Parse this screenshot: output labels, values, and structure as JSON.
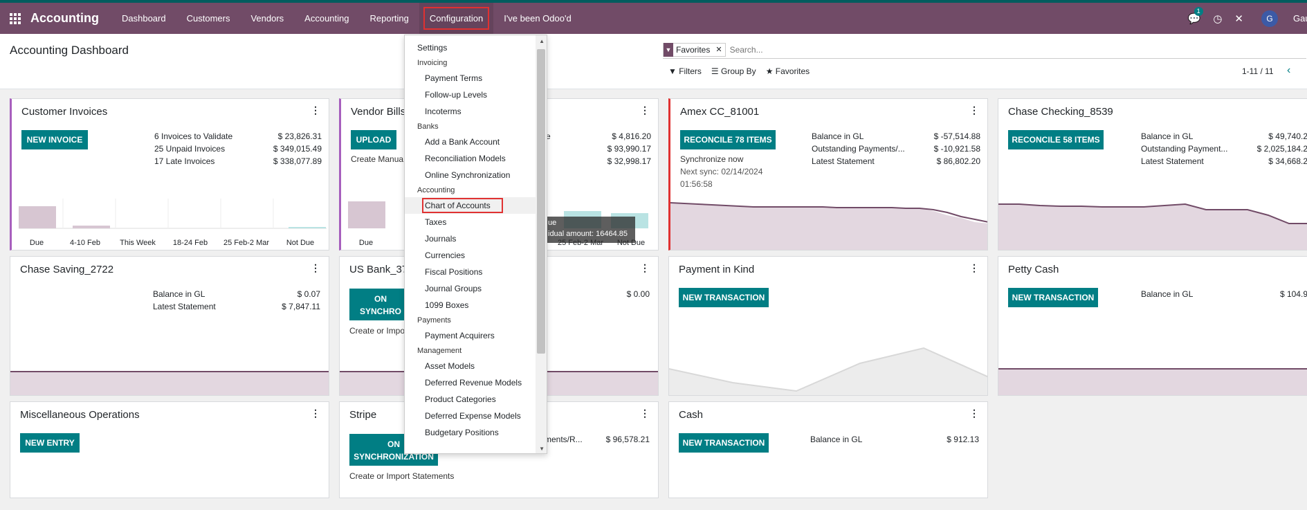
{
  "navbar": {
    "brand": "Accounting",
    "menu": [
      "Dashboard",
      "Customers",
      "Vendors",
      "Accounting",
      "Reporting",
      "Configuration",
      "I've been Odoo'd"
    ],
    "active_menu": "Configuration",
    "chat_badge": "1",
    "user_initial": "G",
    "user_name": "Gau"
  },
  "control_panel": {
    "title": "Accounting Dashboard",
    "facet_label": "Favorites",
    "search_placeholder": "Search...",
    "filters_label": "Filters",
    "groupby_label": "Group By",
    "favorites_label": "Favorites",
    "pager": "1-11 / 11"
  },
  "config_menu": {
    "settings": "Settings",
    "sections": [
      {
        "title": "Invoicing",
        "items": [
          "Payment Terms",
          "Follow-up Levels",
          "Incoterms"
        ]
      },
      {
        "title": "Banks",
        "items": [
          "Add a Bank Account",
          "Reconciliation Models",
          "Online Synchronization"
        ]
      },
      {
        "title": "Accounting",
        "items": [
          "Chart of Accounts",
          "Taxes",
          "Journals",
          "Currencies",
          "Fiscal Positions",
          "Journal Groups",
          "1099 Boxes"
        ]
      },
      {
        "title": "Payments",
        "items": [
          "Payment Acquirers"
        ]
      },
      {
        "title": "Management",
        "items": [
          "Asset Models",
          "Deferred Revenue Models",
          "Product Categories",
          "Deferred Expense Models",
          "Budgetary Positions"
        ]
      }
    ],
    "highlighted": "Chart of Accounts"
  },
  "tooltip": {
    "line1": "ue",
    "line2": "idual amount: 16464.85"
  },
  "cards": {
    "customer_invoices": {
      "title": "Customer Invoices",
      "button": "NEW INVOICE",
      "stats": [
        {
          "label": "6 Invoices to Validate",
          "value": "$ 23,826.31"
        },
        {
          "label": "25 Unpaid Invoices",
          "value": "$ 349,015.49"
        },
        {
          "label": "17 Late Invoices",
          "value": "$ 338,077.89"
        }
      ],
      "bars": [
        "Due",
        "4-10 Feb",
        "This Week",
        "18-24 Feb",
        "25 Feb-2 Mar",
        "Not Due"
      ]
    },
    "vendor_bills": {
      "title": "Vendor Bills",
      "button": "UPLOAD",
      "note": "Create Manua",
      "stat_suffix": "e",
      "values": [
        "$ 4,816.20",
        "$ 93,990.17",
        "$ 32,998.17"
      ],
      "bar_first": "Due",
      "bar_partial": "25 Feb-2 Mar",
      "bar_last": "Not Due"
    },
    "amex": {
      "title": "Amex CC_81001",
      "button": "RECONCILE 78 ITEMS",
      "sync_line1": "Synchronize now",
      "sync_line2": "Next sync: 02/14/2024",
      "sync_line3": "01:56:58",
      "stats": [
        {
          "label": "Balance in GL",
          "value": "$ -57,514.88"
        },
        {
          "label": "Outstanding Payments/...",
          "value": "$ -10,921.58"
        },
        {
          "label": "Latest Statement",
          "value": "$ 86,802.20"
        }
      ]
    },
    "chase_checking": {
      "title": "Chase Checking_8539",
      "button": "RECONCILE 58 ITEMS",
      "stats": [
        {
          "label": "Balance in GL",
          "value": "$ 49,740.2"
        },
        {
          "label": "Outstanding Payment...",
          "value": "$ 2,025,184.2"
        },
        {
          "label": "Latest Statement",
          "value": "$ 34,668.2"
        }
      ]
    },
    "chase_saving": {
      "title": "Chase Saving_2722",
      "stats": [
        {
          "label": "Balance in GL",
          "value": "$ 0.07"
        },
        {
          "label": "Latest Statement",
          "value": "$ 7,847.11"
        }
      ]
    },
    "us_bank": {
      "title": "US Bank_37",
      "button_l1": "ON",
      "button_l2": "SYNCHRO",
      "note": "Create or Impo",
      "value": "$ 0.00"
    },
    "payment_in_kind": {
      "title": "Payment in Kind",
      "button": "NEW TRANSACTION"
    },
    "petty_cash": {
      "title": "Petty Cash",
      "button": "NEW TRANSACTION",
      "stat_label": "Balance in GL",
      "stat_value": "$ 104.9"
    },
    "misc": {
      "title": "Miscellaneous Operations",
      "button": "NEW ENTRY"
    },
    "stripe": {
      "title": "Stripe",
      "button_l1": "ON",
      "button_l2": "SYNCHRONIZATION",
      "note": "Create or Import Statements",
      "stat_label": "ments/R...",
      "stat_value": "$ 96,578.21"
    },
    "cash": {
      "title": "Cash",
      "button": "NEW TRANSACTION",
      "stat_label": "Balance in GL",
      "stat_value": "$ 912.13"
    }
  }
}
